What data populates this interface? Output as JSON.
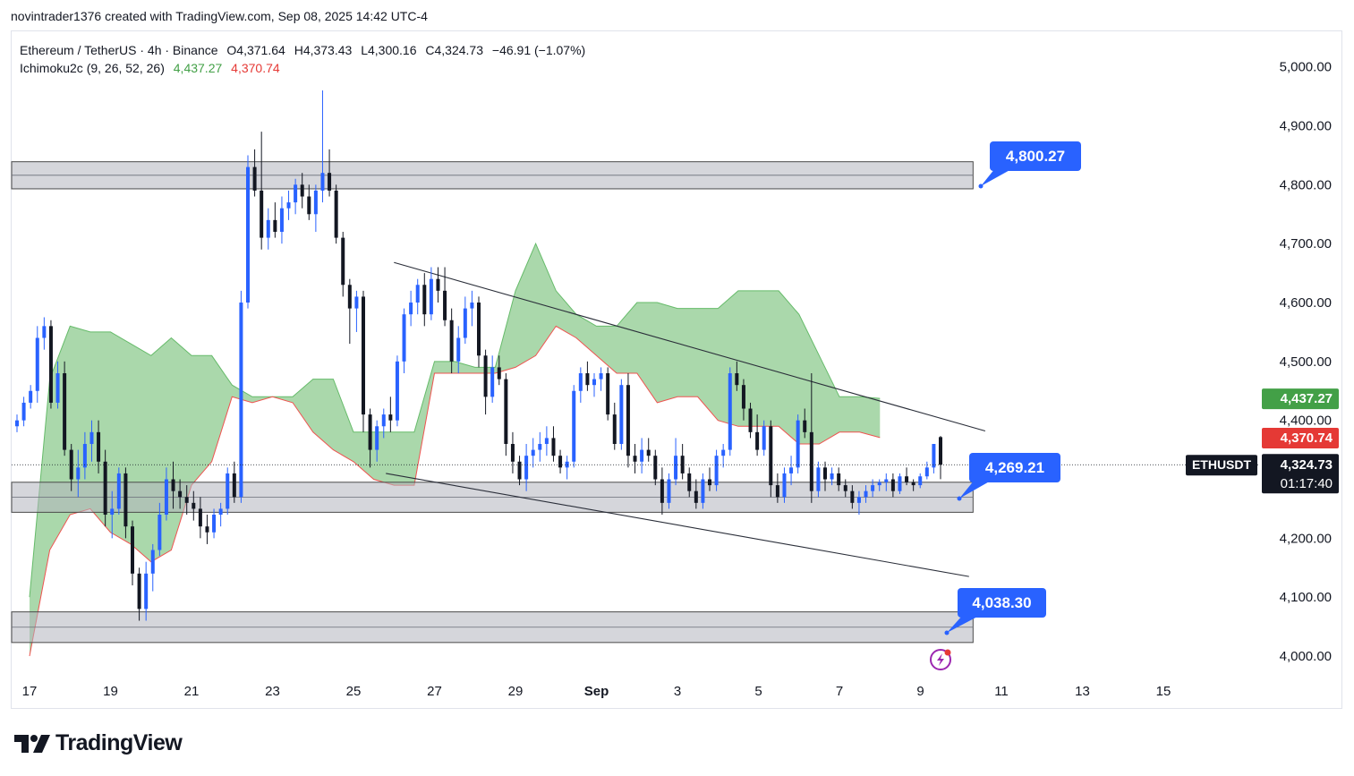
{
  "header": {
    "attribution": "novintrader1376 created with TradingView.com, Sep 08, 2025 14:42 UTC-4"
  },
  "legend": {
    "symbol_line": "Ethereum / TetherUS · 4h · Binance",
    "ohlc": [
      "O4,371.64",
      "H4,373.43",
      "L4,300.16",
      "C4,324.73",
      "−46.91 (−1.07%)"
    ],
    "indicator_name": "Ichimoku2c (9, 26, 52, 26)",
    "indicator_values": [
      "4,437.27",
      "4,370.74"
    ]
  },
  "price_tags": {
    "cloud_top": {
      "value": "4,437.27",
      "color": "#43a047"
    },
    "cloud_bottom": {
      "value": "4,370.74",
      "color": "#e53935"
    },
    "symbol": "ETHUSDT",
    "last": "4,324.73",
    "countdown": "01:17:40"
  },
  "annotations": [
    "4,800.27",
    "4,269.21",
    "4,038.30"
  ],
  "footer": {
    "brand": "TradingView"
  },
  "chart_data": {
    "type": "candlestick",
    "title": "Ethereum / TetherUS · 4h · Binance",
    "y_axis": {
      "ticks": [
        "5,000.00",
        "4,900.00",
        "4,800.00",
        "4,700.00",
        "4,600.00",
        "4,500.00",
        "4,400.00",
        "4,200.00",
        "4,100.00",
        "4,000.00"
      ],
      "ylim": [
        3970,
        5050
      ]
    },
    "x_axis": {
      "ticks": [
        "17",
        "19",
        "21",
        "23",
        "25",
        "27",
        "29",
        "Sep",
        "3",
        "5",
        "7",
        "9",
        "11",
        "13",
        "15"
      ]
    },
    "candles": [
      [
        4390,
        4410,
        4380,
        4400
      ],
      [
        4400,
        4440,
        4390,
        4430
      ],
      [
        4430,
        4460,
        4420,
        4450
      ],
      [
        4450,
        4560,
        4430,
        4540
      ],
      [
        4540,
        4575,
        4520,
        4560
      ],
      [
        4560,
        4570,
        4420,
        4430
      ],
      [
        4430,
        4500,
        4420,
        4480
      ],
      [
        4480,
        4500,
        4340,
        4350
      ],
      [
        4350,
        4360,
        4280,
        4300
      ],
      [
        4300,
        4350,
        4270,
        4320
      ],
      [
        4320,
        4380,
        4300,
        4360
      ],
      [
        4360,
        4400,
        4330,
        4380
      ],
      [
        4380,
        4400,
        4310,
        4330
      ],
      [
        4330,
        4350,
        4220,
        4240
      ],
      [
        4240,
        4280,
        4200,
        4250
      ],
      [
        4250,
        4320,
        4240,
        4310
      ],
      [
        4310,
        4320,
        4200,
        4220
      ],
      [
        4220,
        4230,
        4120,
        4140
      ],
      [
        4140,
        4150,
        4060,
        4080
      ],
      [
        4080,
        4160,
        4060,
        4140
      ],
      [
        4140,
        4190,
        4110,
        4180
      ],
      [
        4180,
        4260,
        4170,
        4240
      ],
      [
        4240,
        4320,
        4230,
        4300
      ],
      [
        4300,
        4330,
        4250,
        4280
      ],
      [
        4280,
        4300,
        4250,
        4270
      ],
      [
        4270,
        4290,
        4240,
        4260
      ],
      [
        4260,
        4280,
        4230,
        4250
      ],
      [
        4250,
        4270,
        4200,
        4220
      ],
      [
        4220,
        4240,
        4190,
        4210
      ],
      [
        4210,
        4250,
        4200,
        4240
      ],
      [
        4240,
        4260,
        4220,
        4250
      ],
      [
        4250,
        4320,
        4240,
        4310
      ],
      [
        4310,
        4330,
        4260,
        4270
      ],
      [
        4270,
        4620,
        4260,
        4600
      ],
      [
        4600,
        4850,
        4590,
        4830
      ],
      [
        4830,
        4860,
        4780,
        4790
      ],
      [
        4790,
        4890,
        4690,
        4710
      ],
      [
        4710,
        4760,
        4690,
        4740
      ],
      [
        4740,
        4770,
        4710,
        4720
      ],
      [
        4720,
        4780,
        4700,
        4760
      ],
      [
        4760,
        4790,
        4740,
        4770
      ],
      [
        4770,
        4810,
        4750,
        4800
      ],
      [
        4800,
        4820,
        4760,
        4780
      ],
      [
        4780,
        4800,
        4740,
        4750
      ],
      [
        4750,
        4800,
        4720,
        4790
      ],
      [
        4790,
        4960,
        4770,
        4820
      ],
      [
        4820,
        4860,
        4780,
        4790
      ],
      [
        4790,
        4800,
        4700,
        4710
      ],
      [
        4710,
        4720,
        4610,
        4630
      ],
      [
        4630,
        4640,
        4530,
        4590
      ],
      [
        4590,
        4620,
        4550,
        4610
      ],
      [
        4610,
        4620,
        4380,
        4410
      ],
      [
        4410,
        4420,
        4320,
        4350
      ],
      [
        4350,
        4400,
        4330,
        4390
      ],
      [
        4390,
        4420,
        4370,
        4410
      ],
      [
        4410,
        4440,
        4380,
        4400
      ],
      [
        4400,
        4510,
        4390,
        4500
      ],
      [
        4500,
        4590,
        4480,
        4580
      ],
      [
        4580,
        4620,
        4560,
        4600
      ],
      [
        4600,
        4640,
        4580,
        4630
      ],
      [
        4630,
        4650,
        4560,
        4580
      ],
      [
        4580,
        4660,
        4570,
        4640
      ],
      [
        4640,
        4660,
        4600,
        4620
      ],
      [
        4620,
        4660,
        4560,
        4570
      ],
      [
        4570,
        4590,
        4480,
        4500
      ],
      [
        4500,
        4560,
        4480,
        4540
      ],
      [
        4540,
        4610,
        4530,
        4590
      ],
      [
        4590,
        4620,
        4560,
        4600
      ],
      [
        4600,
        4610,
        4490,
        4510
      ],
      [
        4510,
        4520,
        4410,
        4440
      ],
      [
        4440,
        4510,
        4430,
        4490
      ],
      [
        4490,
        4510,
        4460,
        4470
      ],
      [
        4470,
        4480,
        4340,
        4360
      ],
      [
        4360,
        4380,
        4310,
        4330
      ],
      [
        4330,
        4340,
        4290,
        4300
      ],
      [
        4300,
        4360,
        4280,
        4340
      ],
      [
        4340,
        4370,
        4320,
        4350
      ],
      [
        4350,
        4380,
        4330,
        4360
      ],
      [
        4360,
        4390,
        4340,
        4370
      ],
      [
        4370,
        4390,
        4330,
        4340
      ],
      [
        4340,
        4350,
        4310,
        4320
      ],
      [
        4320,
        4340,
        4300,
        4330
      ],
      [
        4330,
        4460,
        4320,
        4450
      ],
      [
        4450,
        4490,
        4430,
        4480
      ],
      [
        4480,
        4500,
        4450,
        4460
      ],
      [
        4460,
        4480,
        4440,
        4470
      ],
      [
        4470,
        4490,
        4450,
        4480
      ],
      [
        4480,
        4490,
        4400,
        4410
      ],
      [
        4410,
        4430,
        4350,
        4360
      ],
      [
        4360,
        4470,
        4350,
        4460
      ],
      [
        4460,
        4480,
        4320,
        4340
      ],
      [
        4340,
        4360,
        4310,
        4330
      ],
      [
        4330,
        4370,
        4310,
        4350
      ],
      [
        4350,
        4370,
        4330,
        4340
      ],
      [
        4340,
        4350,
        4290,
        4300
      ],
      [
        4300,
        4320,
        4240,
        4260
      ],
      [
        4260,
        4310,
        4250,
        4300
      ],
      [
        4300,
        4370,
        4290,
        4340
      ],
      [
        4340,
        4360,
        4300,
        4310
      ],
      [
        4310,
        4320,
        4270,
        4280
      ],
      [
        4280,
        4300,
        4250,
        4260
      ],
      [
        4260,
        4310,
        4250,
        4300
      ],
      [
        4300,
        4320,
        4280,
        4290
      ],
      [
        4290,
        4350,
        4280,
        4340
      ],
      [
        4340,
        4360,
        4320,
        4350
      ],
      [
        4350,
        4490,
        4340,
        4480
      ],
      [
        4480,
        4500,
        4450,
        4460
      ],
      [
        4460,
        4470,
        4400,
        4420
      ],
      [
        4420,
        4430,
        4370,
        4380
      ],
      [
        4380,
        4410,
        4340,
        4350
      ],
      [
        4350,
        4400,
        4340,
        4390
      ],
      [
        4390,
        4400,
        4270,
        4290
      ],
      [
        4290,
        4310,
        4260,
        4270
      ],
      [
        4270,
        4320,
        4260,
        4310
      ],
      [
        4310,
        4340,
        4290,
        4320
      ],
      [
        4320,
        4410,
        4310,
        4400
      ],
      [
        4400,
        4420,
        4370,
        4380
      ],
      [
        4380,
        4480,
        4260,
        4280
      ],
      [
        4280,
        4330,
        4270,
        4320
      ],
      [
        4320,
        4330,
        4280,
        4300
      ],
      [
        4300,
        4320,
        4290,
        4310
      ],
      [
        4310,
        4320,
        4280,
        4290
      ],
      [
        4290,
        4300,
        4270,
        4280
      ],
      [
        4280,
        4290,
        4250,
        4260
      ],
      [
        4260,
        4280,
        4240,
        4270
      ],
      [
        4270,
        4290,
        4260,
        4280
      ],
      [
        4280,
        4300,
        4270,
        4290
      ],
      [
        4290,
        4300,
        4280,
        4295
      ],
      [
        4295,
        4310,
        4280,
        4300
      ],
      [
        4300,
        4310,
        4270,
        4280
      ],
      [
        4280,
        4310,
        4275,
        4305
      ],
      [
        4305,
        4320,
        4290,
        4295
      ],
      [
        4295,
        4300,
        4280,
        4290
      ],
      [
        4290,
        4310,
        4285,
        4305
      ],
      [
        4305,
        4330,
        4300,
        4320
      ],
      [
        4320,
        4360,
        4310,
        4360
      ],
      [
        4371.64,
        4373.43,
        4300.16,
        4324.73
      ]
    ],
    "cloud": {
      "top_last": 4437.27,
      "bottom_last": 4370.74,
      "x_days": [
        17,
        17.5,
        18,
        18.5,
        19,
        19.5,
        20,
        20.5,
        21,
        21.5,
        22,
        22.5,
        23,
        23.5,
        24,
        24.5,
        25,
        25.5,
        26,
        26.5,
        27,
        27.5,
        28,
        28.5,
        29,
        29.5,
        30,
        30.5,
        31,
        31.5,
        32,
        32.5,
        33,
        33.5,
        34,
        34.5,
        35,
        35.5,
        36,
        36.5,
        37,
        37.5,
        38
      ],
      "top": [
        4100,
        4470,
        4560,
        4550,
        4550,
        4530,
        4510,
        4540,
        4510,
        4510,
        4460,
        4440,
        4440,
        4440,
        4470,
        4470,
        4380,
        4380,
        4380,
        4380,
        4500,
        4500,
        4490,
        4490,
        4620,
        4700,
        4620,
        4580,
        4560,
        4560,
        4600,
        4600,
        4590,
        4590,
        4590,
        4620,
        4620,
        4620,
        4580,
        4510,
        4440,
        4440,
        4437.27
      ],
      "bottom": [
        4000,
        4180,
        4240,
        4250,
        4210,
        4190,
        4160,
        4180,
        4290,
        4330,
        4440,
        4430,
        4440,
        4430,
        4380,
        4350,
        4330,
        4300,
        4290,
        4290,
        4480,
        4480,
        4480,
        4480,
        4490,
        4510,
        4560,
        4540,
        4510,
        4480,
        4480,
        4430,
        4440,
        4440,
        4400,
        4390,
        4390,
        4390,
        4360,
        4360,
        4380,
        4380,
        4370.74
      ]
    },
    "horizontal_zones": [
      {
        "y_top": 4839,
        "y_bottom": 4793,
        "x_end_day": 40.3
      },
      {
        "y_top": 4295,
        "y_bottom": 4244,
        "x_end_day": 40.3
      },
      {
        "y_top": 4075,
        "y_bottom": 4023,
        "x_end_day": 40.3
      }
    ],
    "trendlines": [
      {
        "from": [
          26.0,
          4668
        ],
        "to": [
          40.6,
          4382
        ]
      },
      {
        "from": [
          25.8,
          4310
        ],
        "to": [
          40.2,
          4135
        ]
      }
    ],
    "last_price": 4324.73
  }
}
